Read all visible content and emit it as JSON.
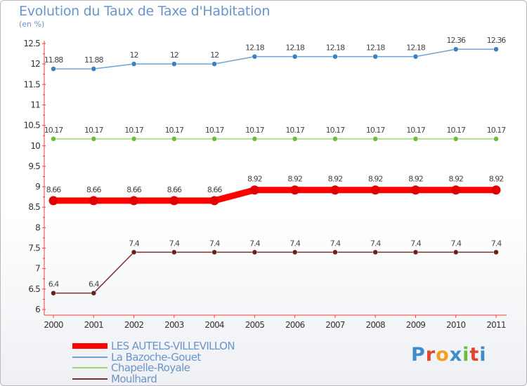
{
  "title": "Evolution du Taux de Taxe d'Habitation",
  "unit": "(en %)",
  "chart_data": {
    "type": "line",
    "title": "Evolution du Taux de Taxe d'Habitation",
    "ylabel": "(en %)",
    "xlabel": "",
    "x": [
      "2000",
      "2001",
      "2002",
      "2003",
      "2004",
      "2005",
      "2006",
      "2007",
      "2008",
      "2009",
      "2010",
      "2011"
    ],
    "ylim": [
      6,
      12.5
    ],
    "yticks": [
      "6",
      "6.5",
      "7",
      "7.5",
      "8",
      "8.5",
      "9",
      "9.5",
      "10",
      "10.5",
      "11",
      "11.5",
      "12",
      "12.5"
    ],
    "series": [
      {
        "name": "LES AUTELS-VILLEVILLON",
        "color": "#ff0000",
        "marker_color": "#e00000",
        "width": 9,
        "marker": 6.5,
        "values": [
          8.66,
          8.66,
          8.66,
          8.66,
          8.66,
          8.92,
          8.92,
          8.92,
          8.92,
          8.92,
          8.92,
          8.92
        ],
        "labels": [
          "8.66",
          "8.66",
          "8.66",
          "8.66",
          "8.66",
          "8.92",
          "8.92",
          "8.92",
          "8.92",
          "8.92",
          "8.92",
          "8.92"
        ]
      },
      {
        "name": "La Bazoche-Gouet",
        "color": "#6fa3d4",
        "marker_color": "#3d80bf",
        "width": 1.5,
        "marker": 3.5,
        "values": [
          11.88,
          11.88,
          12,
          12,
          12,
          12.18,
          12.18,
          12.18,
          12.18,
          12.18,
          12.36,
          12.36
        ],
        "labels": [
          "11.88",
          "11.88",
          "12",
          "12",
          "12",
          "12.18",
          "12.18",
          "12.18",
          "12.18",
          "12.18",
          "12.36",
          "12.36"
        ]
      },
      {
        "name": "Chapelle-Royale",
        "color": "#9ed86f",
        "marker_color": "#6cbd3a",
        "width": 1.5,
        "marker": 3.5,
        "values": [
          10.17,
          10.17,
          10.17,
          10.17,
          10.17,
          10.17,
          10.17,
          10.17,
          10.17,
          10.17,
          10.17,
          10.17
        ],
        "labels": [
          "10.17",
          "10.17",
          "10.17",
          "10.17",
          "10.17",
          "10.17",
          "10.17",
          "10.17",
          "10.17",
          "10.17",
          "10.17",
          "10.17"
        ]
      },
      {
        "name": "Moulhard",
        "color": "#7a3030",
        "marker_color": "#6a1f1f",
        "width": 1.5,
        "marker": 3.5,
        "values": [
          6.4,
          6.4,
          7.4,
          7.4,
          7.4,
          7.4,
          7.4,
          7.4,
          7.4,
          7.4,
          7.4,
          7.4
        ],
        "labels": [
          "6.4",
          "6.4",
          "7.4",
          "7.4",
          "7.4",
          "7.4",
          "7.4",
          "7.4",
          "7.4",
          "7.4",
          "7.4",
          "7.4"
        ]
      }
    ],
    "legend_position": "bottom-left",
    "grid": false
  },
  "legend": [
    {
      "label": "LES AUTELS-VILLEVILLON",
      "color": "#ff0000"
    },
    {
      "label": "La Bazoche-Gouet",
      "color": "#6fa3d4"
    },
    {
      "label": "Chapelle-Royale",
      "color": "#9ed86f"
    },
    {
      "label": "Moulhard",
      "color": "#7a3030"
    }
  ],
  "logo": {
    "letters": [
      "P",
      "r",
      "o",
      "x",
      "i",
      "t",
      "i"
    ],
    "colors": [
      "#3f8ccb",
      "#e3442e",
      "#f0a020",
      "#3f8ccb",
      "#6bbf3a",
      "#e3442e",
      "#3f8ccb"
    ]
  }
}
